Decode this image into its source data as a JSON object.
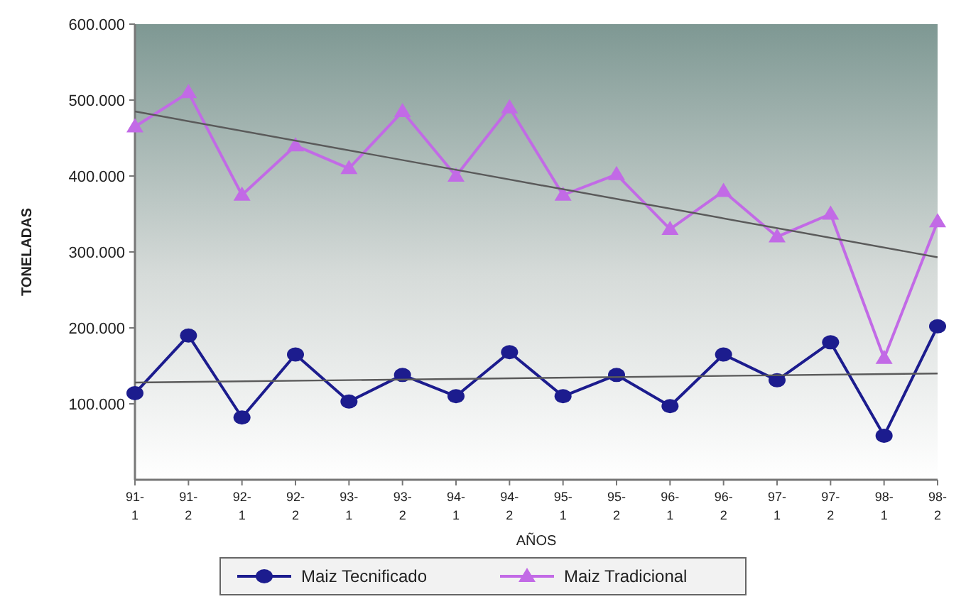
{
  "chart_data": {
    "type": "line",
    "xlabel": "AÑOS",
    "ylabel": "TONELADAS",
    "categories": [
      "91-\n1",
      "91-\n2",
      "92-\n1",
      "92-\n2",
      "93-\n1",
      "93-\n2",
      "94-\n1",
      "94-\n2",
      "95-\n1",
      "95-\n2",
      "96-\n1",
      "96-\n2",
      "97-\n1",
      "97-\n2",
      "98-\n1",
      "98-\n2"
    ],
    "series": [
      {
        "name": "Maiz Tecnificado",
        "color": "#1c1c8e",
        "marker": "circle",
        "values": [
          114000,
          190000,
          82000,
          165000,
          103000,
          138000,
          110000,
          168000,
          110000,
          138000,
          97000,
          165000,
          131000,
          181000,
          58000,
          202000
        ]
      },
      {
        "name": "Maiz Tradicional",
        "color": "#c26ae6",
        "marker": "triangle",
        "values": [
          465000,
          510000,
          375000,
          440000,
          410000,
          485000,
          400000,
          490000,
          375000,
          402000,
          330000,
          380000,
          320000,
          350000,
          160000,
          340000
        ]
      },
      {
        "type": "line",
        "color": "#5a5a5a",
        "marker": "none",
        "x": [
          "91-\n1",
          "98-\n2"
        ],
        "values": [
          128000,
          140000
        ]
      },
      {
        "type": "line",
        "color": "#5a5a5a",
        "marker": "none",
        "x": [
          "91-\n1",
          "98-\n2"
        ],
        "values": [
          485000,
          293000
        ]
      }
    ],
    "ylim": [
      0,
      600000
    ],
    "yticks": [
      {
        "value": 100000,
        "label": "100.000"
      },
      {
        "value": 200000,
        "label": "200.000"
      },
      {
        "value": 300000,
        "label": "300.000"
      },
      {
        "value": 400000,
        "label": "400.000"
      },
      {
        "value": 500000,
        "label": "500.000"
      },
      {
        "value": 600000,
        "label": "600.000"
      }
    ],
    "grid": false,
    "legend": "bottom"
  }
}
